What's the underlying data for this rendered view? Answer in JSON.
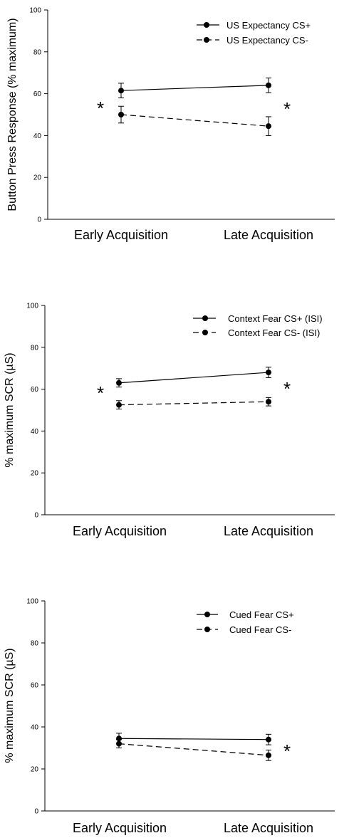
{
  "chart_data": [
    {
      "type": "line",
      "ylabel": "Button Press Response (% maximum)",
      "categories": [
        "Early Acquisition",
        "Late Acquisition"
      ],
      "ylim": [
        0,
        100
      ],
      "yticks": [
        0,
        20,
        40,
        60,
        80,
        100
      ],
      "series": [
        {
          "name": "US Expectancy CS+",
          "values": [
            61.5,
            64
          ],
          "errors": [
            3.5,
            3.5
          ],
          "line": "solid"
        },
        {
          "name": "US Expectancy CS-",
          "values": [
            50,
            44.5
          ],
          "errors": [
            4,
            4.5
          ],
          "line": "dashed"
        }
      ],
      "annotations": [
        "*",
        "*"
      ],
      "legend": "top-right"
    },
    {
      "type": "line",
      "ylabel": "% maximum SCR (µS)",
      "categories": [
        "Early Acquisition",
        "Late Acquisition"
      ],
      "ylim": [
        0,
        100
      ],
      "yticks": [
        0,
        20,
        40,
        60,
        80,
        100
      ],
      "series": [
        {
          "name": "Context Fear CS+ (ISI)",
          "values": [
            63,
            68
          ],
          "errors": [
            2,
            2.5
          ],
          "line": "solid"
        },
        {
          "name": "Context Fear CS- (ISI)",
          "values": [
            52.5,
            54
          ],
          "errors": [
            2,
            2
          ],
          "line": "dashed"
        }
      ],
      "annotations": [
        "*",
        "*"
      ],
      "legend": "top-right"
    },
    {
      "type": "line",
      "ylabel": "% maximum SCR (µS)",
      "categories": [
        "Early Acquisition",
        "Late Acquisition"
      ],
      "ylim": [
        0,
        100
      ],
      "yticks": [
        0,
        20,
        40,
        60,
        80,
        100
      ],
      "series": [
        {
          "name": "Cued Fear CS+",
          "values": [
            34.5,
            34
          ],
          "errors": [
            2.5,
            2.5
          ],
          "line": "solid"
        },
        {
          "name": "Cued Fear CS-",
          "values": [
            32,
            26.5
          ],
          "errors": [
            2,
            2.5
          ],
          "line": "dashed"
        }
      ],
      "annotations": [
        "*"
      ],
      "legend": "top-right"
    }
  ]
}
